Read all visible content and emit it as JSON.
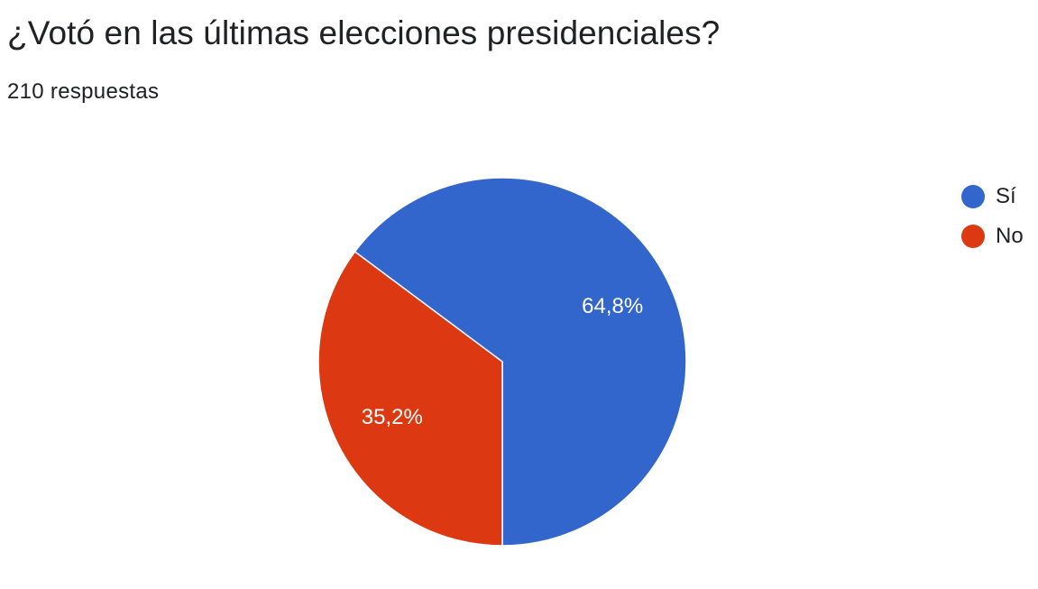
{
  "header": {
    "question": "¿Votó en las últimas elecciones presidenciales?",
    "responses": "210 respuestas"
  },
  "chart_data": {
    "type": "pie",
    "categories": [
      "Sí",
      "No"
    ],
    "values": [
      64.8,
      35.2
    ],
    "labels": [
      "64,8%",
      "35,2%"
    ],
    "colors": [
      "#3366cc",
      "#dc3912"
    ],
    "legend_position": "right"
  }
}
